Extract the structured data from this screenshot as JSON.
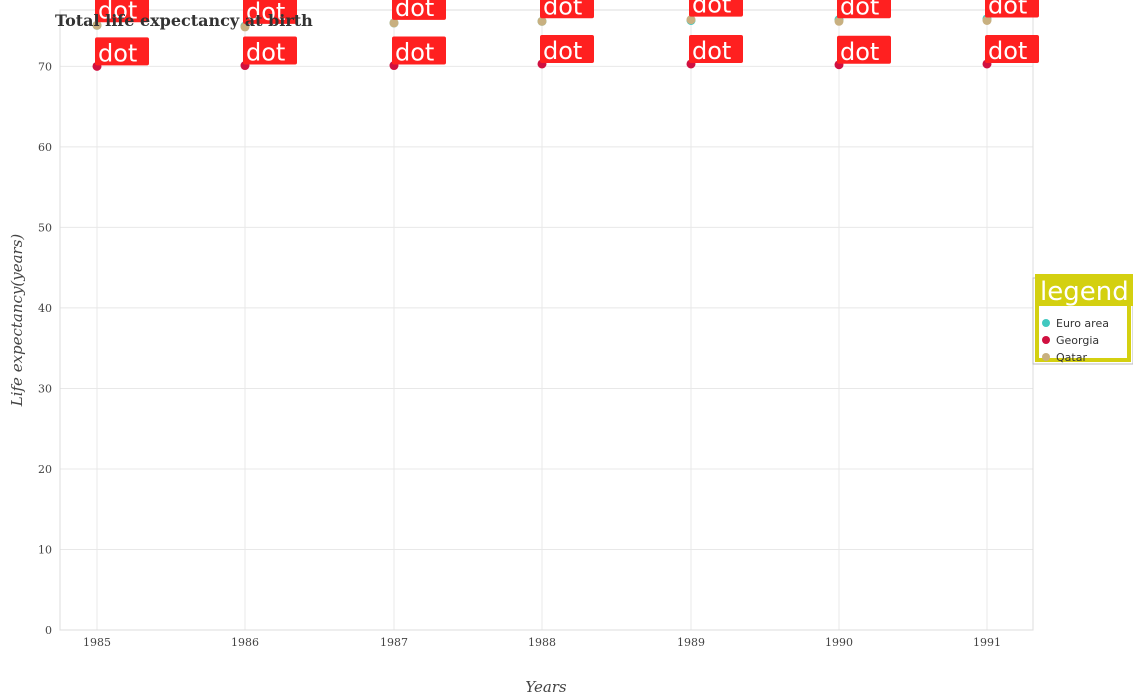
{
  "chart_data": {
    "type": "scatter",
    "title": "Total life expectancy at birth",
    "xlabel": "Years",
    "ylabel": "Life expectancy(years)",
    "x": [
      "1985",
      "1986",
      "1987",
      "1988",
      "1989",
      "1990",
      "1991"
    ],
    "ylim": [
      0,
      77
    ],
    "yticks": [
      0,
      10,
      20,
      30,
      40,
      50,
      60,
      70
    ],
    "grid": true,
    "legend_position": "right",
    "legend_title": "legend",
    "point_label": "dot",
    "series": [
      {
        "name": "Euro area",
        "color": "#40c8c0",
        "values": [
          75.1,
          75.0,
          75.4,
          75.6,
          75.7,
          75.8,
          75.9
        ]
      },
      {
        "name": "Georgia",
        "color": "#d01040",
        "values": [
          70.0,
          70.1,
          70.1,
          70.3,
          70.3,
          70.2,
          70.3
        ]
      },
      {
        "name": "Qatar",
        "color": "#c8b080",
        "values": [
          75.1,
          74.9,
          75.4,
          75.6,
          75.8,
          75.6,
          75.7
        ]
      }
    ],
    "label_color": "#ff2020",
    "legend_border_color": "#d4d010"
  }
}
